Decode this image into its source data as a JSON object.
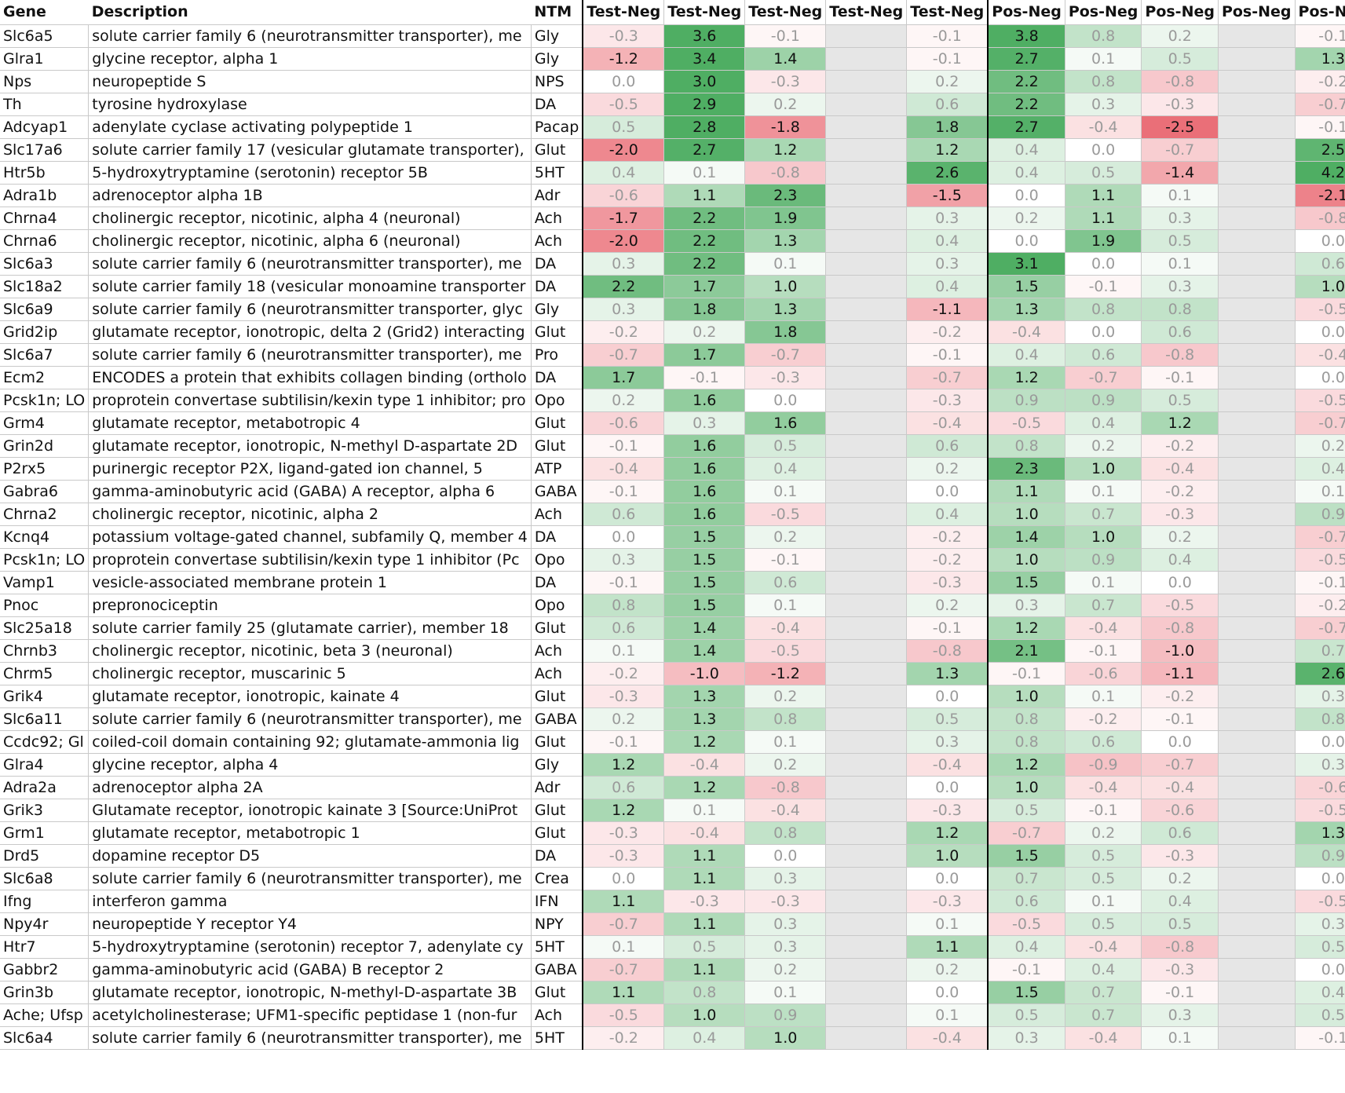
{
  "chart_data": {
    "type": "heatmap",
    "columns": [
      "Gene",
      "Description",
      "NTM",
      "Test-Neg",
      "Test-Neg",
      "Test-Neg",
      "Test-Neg",
      "Test-Neg",
      "Pos-Neg",
      "Pos-Neg",
      "Pos-Neg",
      "Pos-Neg",
      "Pos-Neg"
    ],
    "rows": [
      {
        "gene": "Slc6a5",
        "desc": "solute carrier family 6 (neurotransmitter transporter), me",
        "ntm": "Gly",
        "v": [
          -0.3,
          3.6,
          -0.1,
          null,
          -0.1,
          3.8,
          0.8,
          0.2,
          null,
          -0.1
        ]
      },
      {
        "gene": "Glra1",
        "desc": "glycine receptor, alpha 1",
        "ntm": "Gly",
        "v": [
          -1.2,
          3.4,
          1.4,
          null,
          -0.1,
          2.7,
          0.1,
          0.5,
          null,
          1.3
        ]
      },
      {
        "gene": "Nps",
        "desc": "neuropeptide S",
        "ntm": "NPS",
        "v": [
          0.0,
          3.0,
          -0.3,
          null,
          0.2,
          2.2,
          0.8,
          -0.8,
          null,
          -0.2
        ]
      },
      {
        "gene": "Th",
        "desc": "tyrosine hydroxylase",
        "ntm": "DA",
        "v": [
          -0.5,
          2.9,
          0.2,
          null,
          0.6,
          2.2,
          0.3,
          -0.3,
          null,
          -0.7
        ]
      },
      {
        "gene": "Adcyap1",
        "desc": "adenylate cyclase activating polypeptide 1",
        "ntm": "Pacap",
        "v": [
          0.5,
          2.8,
          -1.8,
          null,
          1.8,
          2.7,
          -0.4,
          -2.5,
          null,
          -0.1
        ]
      },
      {
        "gene": "Slc17a6",
        "desc": "solute carrier family 17 (vesicular glutamate transporter),",
        "ntm": "Glut",
        "v": [
          -2.0,
          2.7,
          1.2,
          null,
          1.2,
          0.4,
          0.0,
          -0.7,
          null,
          2.5
        ]
      },
      {
        "gene": "Htr5b",
        "desc": "5-hydroxytryptamine (serotonin) receptor 5B",
        "ntm": "5HT",
        "v": [
          0.4,
          0.1,
          -0.8,
          null,
          2.6,
          0.4,
          0.5,
          -1.4,
          null,
          4.2
        ]
      },
      {
        "gene": "Adra1b",
        "desc": "adrenoceptor alpha 1B",
        "ntm": "Adr",
        "v": [
          -0.6,
          1.1,
          2.3,
          null,
          -1.5,
          0.0,
          1.1,
          0.1,
          null,
          -2.1
        ]
      },
      {
        "gene": "Chrna4",
        "desc": "cholinergic receptor, nicotinic, alpha 4 (neuronal)",
        "ntm": "Ach",
        "v": [
          -1.7,
          2.2,
          1.9,
          null,
          0.3,
          0.2,
          1.1,
          0.3,
          null,
          -0.8
        ]
      },
      {
        "gene": "Chrna6",
        "desc": "cholinergic receptor, nicotinic, alpha 6 (neuronal)",
        "ntm": "Ach",
        "v": [
          -2.0,
          2.2,
          1.3,
          null,
          0.4,
          0.0,
          1.9,
          0.5,
          null,
          0.0
        ]
      },
      {
        "gene": "Slc6a3",
        "desc": "solute carrier family 6 (neurotransmitter transporter), me",
        "ntm": "DA",
        "v": [
          0.3,
          2.2,
          0.1,
          null,
          0.3,
          3.1,
          0.0,
          0.1,
          null,
          0.6
        ]
      },
      {
        "gene": "Slc18a2",
        "desc": "solute carrier family 18 (vesicular monoamine transporter",
        "ntm": "DA",
        "v": [
          2.2,
          1.7,
          1.0,
          null,
          0.4,
          1.5,
          -0.1,
          0.3,
          null,
          1.0
        ]
      },
      {
        "gene": "Slc6a9",
        "desc": "solute carrier family 6 (neurotransmitter transporter, glyc",
        "ntm": "Gly",
        "v": [
          0.3,
          1.8,
          1.3,
          null,
          -1.1,
          1.3,
          0.8,
          0.8,
          null,
          -0.5
        ]
      },
      {
        "gene": "Grid2ip",
        "desc": "glutamate receptor, ionotropic, delta 2 (Grid2) interacting",
        "ntm": "Glut",
        "v": [
          -0.2,
          0.2,
          1.8,
          null,
          -0.2,
          -0.4,
          0.0,
          0.6,
          null,
          0.0
        ]
      },
      {
        "gene": "Slc6a7",
        "desc": "solute carrier family 6 (neurotransmitter transporter), me",
        "ntm": "Pro",
        "v": [
          -0.7,
          1.7,
          -0.7,
          null,
          -0.1,
          0.4,
          0.6,
          -0.8,
          null,
          -0.4
        ]
      },
      {
        "gene": "Ecm2",
        "desc": "ENCODES a protein that exhibits collagen binding (ortholo",
        "ntm": "DA",
        "v": [
          1.7,
          -0.1,
          -0.3,
          null,
          -0.7,
          1.2,
          -0.7,
          -0.1,
          null,
          0.0
        ]
      },
      {
        "gene": "Pcsk1n; LO",
        "desc": "proprotein convertase subtilisin/kexin type 1 inhibitor; pro",
        "ntm": "Opo",
        "v": [
          0.2,
          1.6,
          0.0,
          null,
          -0.3,
          0.9,
          0.9,
          0.5,
          null,
          -0.5
        ]
      },
      {
        "gene": "Grm4",
        "desc": "glutamate receptor, metabotropic 4",
        "ntm": "Glut",
        "v": [
          -0.6,
          0.3,
          1.6,
          null,
          -0.4,
          -0.5,
          0.4,
          1.2,
          null,
          -0.7
        ]
      },
      {
        "gene": "Grin2d",
        "desc": "glutamate receptor, ionotropic, N-methyl D-aspartate 2D",
        "ntm": "Glut",
        "v": [
          -0.1,
          1.6,
          0.5,
          null,
          0.6,
          0.8,
          0.2,
          -0.2,
          null,
          0.2
        ]
      },
      {
        "gene": "P2rx5",
        "desc": "purinergic receptor P2X, ligand-gated ion channel, 5",
        "ntm": "ATP",
        "v": [
          -0.4,
          1.6,
          0.4,
          null,
          0.2,
          2.3,
          1.0,
          -0.4,
          null,
          0.4
        ]
      },
      {
        "gene": "Gabra6",
        "desc": "gamma-aminobutyric acid (GABA) A receptor, alpha 6",
        "ntm": "GABA",
        "v": [
          -0.1,
          1.6,
          0.1,
          null,
          0.0,
          1.1,
          0.1,
          -0.2,
          null,
          0.1
        ]
      },
      {
        "gene": "Chrna2",
        "desc": "cholinergic receptor, nicotinic, alpha 2",
        "ntm": "Ach",
        "v": [
          0.6,
          1.6,
          -0.5,
          null,
          0.4,
          1.0,
          0.7,
          -0.3,
          null,
          0.9
        ]
      },
      {
        "gene": "Kcnq4",
        "desc": "potassium voltage-gated channel, subfamily Q, member 4",
        "ntm": "DA",
        "v": [
          0.0,
          1.5,
          0.2,
          null,
          -0.2,
          1.4,
          1.0,
          0.2,
          null,
          -0.7
        ]
      },
      {
        "gene": "Pcsk1n; LO",
        "desc": "proprotein convertase subtilisin/kexin type 1 inhibitor (Pc",
        "ntm": "Opo",
        "v": [
          0.3,
          1.5,
          -0.1,
          null,
          -0.2,
          1.0,
          0.9,
          0.4,
          null,
          -0.5
        ]
      },
      {
        "gene": "Vamp1",
        "desc": "vesicle-associated membrane protein 1",
        "ntm": "DA",
        "v": [
          -0.1,
          1.5,
          0.6,
          null,
          -0.3,
          1.5,
          0.1,
          0.0,
          null,
          -0.1
        ]
      },
      {
        "gene": "Pnoc",
        "desc": "prepronociceptin",
        "ntm": "Opo",
        "v": [
          0.8,
          1.5,
          0.1,
          null,
          0.2,
          0.3,
          0.7,
          -0.5,
          null,
          -0.2
        ]
      },
      {
        "gene": "Slc25a18",
        "desc": "solute carrier family 25 (glutamate carrier), member 18",
        "ntm": "Glut",
        "v": [
          0.6,
          1.4,
          -0.4,
          null,
          -0.1,
          1.2,
          -0.4,
          -0.8,
          null,
          -0.7
        ]
      },
      {
        "gene": "Chrnb3",
        "desc": "cholinergic receptor, nicotinic, beta 3 (neuronal)",
        "ntm": "Ach",
        "v": [
          0.1,
          1.4,
          -0.5,
          null,
          -0.8,
          2.1,
          -0.1,
          -1.0,
          null,
          0.7
        ]
      },
      {
        "gene": "Chrm5",
        "desc": "cholinergic receptor, muscarinic 5",
        "ntm": "Ach",
        "v": [
          -0.2,
          -1.0,
          -1.2,
          null,
          1.3,
          -0.1,
          -0.6,
          -1.1,
          null,
          2.6
        ]
      },
      {
        "gene": "Grik4",
        "desc": "glutamate receptor, ionotropic, kainate 4",
        "ntm": "Glut",
        "v": [
          -0.3,
          1.3,
          0.2,
          null,
          0.0,
          1.0,
          0.1,
          -0.2,
          null,
          0.3
        ]
      },
      {
        "gene": "Slc6a11",
        "desc": "solute carrier family 6 (neurotransmitter transporter), me",
        "ntm": "GABA",
        "v": [
          0.2,
          1.3,
          0.8,
          null,
          0.5,
          0.8,
          -0.2,
          -0.1,
          null,
          0.8
        ]
      },
      {
        "gene": "Ccdc92; Gl",
        "desc": "coiled-coil domain containing 92; glutamate-ammonia lig",
        "ntm": "Glut",
        "v": [
          -0.1,
          1.2,
          0.1,
          null,
          0.3,
          0.8,
          0.6,
          0.0,
          null,
          0.0
        ]
      },
      {
        "gene": "Glra4",
        "desc": "glycine receptor, alpha 4",
        "ntm": "Gly",
        "v": [
          1.2,
          -0.4,
          0.2,
          null,
          -0.4,
          1.2,
          -0.9,
          -0.7,
          null,
          0.3
        ]
      },
      {
        "gene": "Adra2a",
        "desc": "adrenoceptor alpha 2A",
        "ntm": "Adr",
        "v": [
          0.6,
          1.2,
          -0.8,
          null,
          0.0,
          1.0,
          -0.4,
          -0.4,
          null,
          -0.6
        ]
      },
      {
        "gene": "Grik3",
        "desc": "Glutamate receptor, ionotropic kainate 3 [Source:UniProt",
        "ntm": "Glut",
        "v": [
          1.2,
          0.1,
          -0.4,
          null,
          -0.3,
          0.5,
          -0.1,
          -0.6,
          null,
          -0.5
        ]
      },
      {
        "gene": "Grm1",
        "desc": "glutamate receptor, metabotropic 1",
        "ntm": "Glut",
        "v": [
          -0.3,
          -0.4,
          0.8,
          null,
          1.2,
          -0.7,
          0.2,
          0.6,
          null,
          1.3
        ]
      },
      {
        "gene": "Drd5",
        "desc": "dopamine receptor D5",
        "ntm": "DA",
        "v": [
          -0.3,
          1.1,
          0.0,
          null,
          1.0,
          1.5,
          0.5,
          -0.3,
          null,
          0.9
        ]
      },
      {
        "gene": "Slc6a8",
        "desc": "solute carrier family 6 (neurotransmitter transporter), me",
        "ntm": "Crea",
        "v": [
          0.0,
          1.1,
          0.3,
          null,
          0.0,
          0.7,
          0.5,
          0.2,
          null,
          0.0
        ]
      },
      {
        "gene": "Ifng",
        "desc": "interferon gamma",
        "ntm": "IFN",
        "v": [
          1.1,
          -0.3,
          -0.3,
          null,
          -0.3,
          0.6,
          0.1,
          0.4,
          null,
          -0.5
        ]
      },
      {
        "gene": "Npy4r",
        "desc": "neuropeptide Y receptor Y4",
        "ntm": "NPY",
        "v": [
          -0.7,
          1.1,
          0.3,
          null,
          0.1,
          -0.5,
          0.5,
          0.5,
          null,
          0.3
        ]
      },
      {
        "gene": "Htr7",
        "desc": "5-hydroxytryptamine (serotonin) receptor 7, adenylate cy",
        "ntm": "5HT",
        "v": [
          0.1,
          0.5,
          0.3,
          null,
          1.1,
          0.4,
          -0.4,
          -0.8,
          null,
          0.5
        ]
      },
      {
        "gene": "Gabbr2",
        "desc": "gamma-aminobutyric acid (GABA) B receptor 2",
        "ntm": "GABA",
        "v": [
          -0.7,
          1.1,
          0.2,
          null,
          0.2,
          -0.1,
          0.4,
          -0.3,
          null,
          0.0
        ]
      },
      {
        "gene": "Grin3b",
        "desc": "glutamate receptor, ionotropic, N-methyl-D-aspartate 3B",
        "ntm": "Glut",
        "v": [
          1.1,
          0.8,
          0.1,
          null,
          0.0,
          1.5,
          0.7,
          -0.1,
          null,
          0.4
        ]
      },
      {
        "gene": "Ache; Ufsp",
        "desc": "acetylcholinesterase; UFM1-specific peptidase 1 (non-fur",
        "ntm": "Ach",
        "v": [
          -0.5,
          1.0,
          0.9,
          null,
          0.1,
          0.5,
          0.7,
          0.3,
          null,
          0.5
        ]
      },
      {
        "gene": "Slc6a4",
        "desc": "solute carrier family 6 (neurotransmitter transporter), me",
        "ntm": "5HT",
        "v": [
          -0.2,
          0.4,
          1.0,
          null,
          -0.4,
          0.3,
          -0.4,
          0.1,
          null,
          -0.1
        ]
      }
    ],
    "colors": {
      "positive": "#4fae63",
      "negative": "#e8606a",
      "blank_column": "#e6e6e6",
      "text": "#111111",
      "dim_text": "#9a9a9a"
    }
  }
}
